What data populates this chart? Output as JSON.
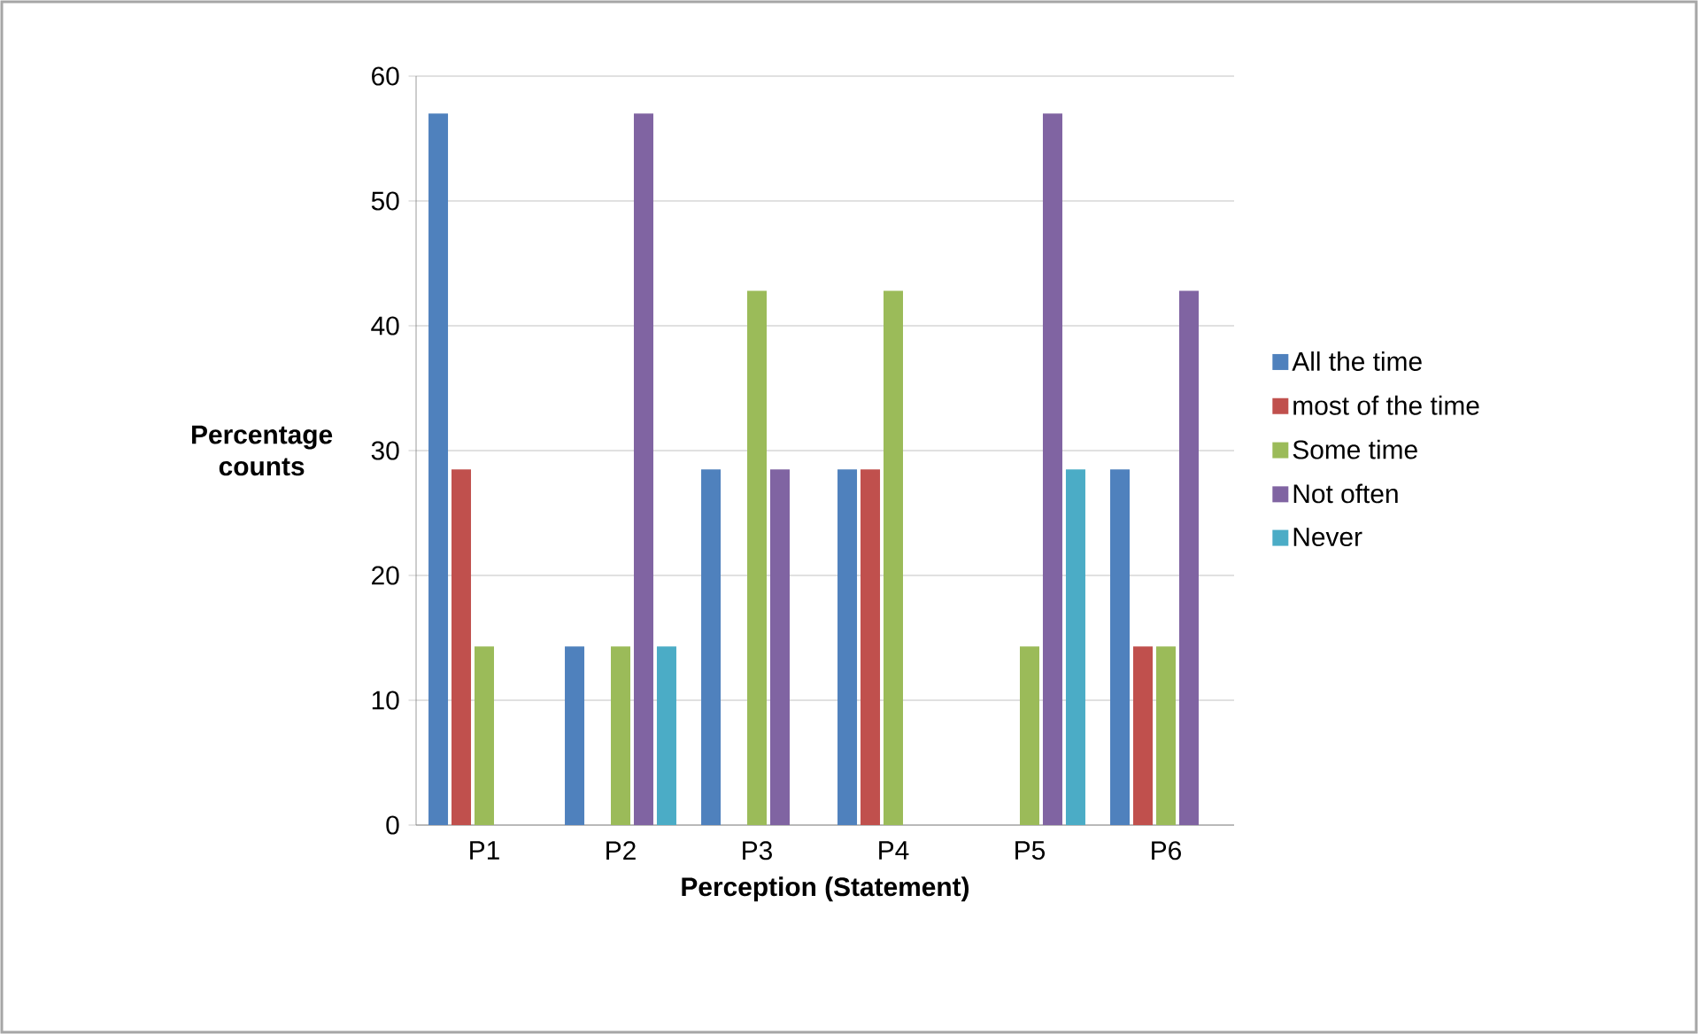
{
  "chart_data": {
    "type": "bar",
    "xlabel": "Perception (Statement)",
    "ylabel": "Percentage counts",
    "categories": [
      "P1",
      "P2",
      "P3",
      "P4",
      "P5",
      "P6"
    ],
    "series": [
      {
        "name": "All the time",
        "color": "#4f81bd",
        "values": [
          57,
          14.3,
          28.5,
          28.5,
          0,
          28.5
        ]
      },
      {
        "name": "most of the time",
        "color": "#c0504d",
        "values": [
          28.5,
          0,
          0,
          28.5,
          0,
          14.3
        ]
      },
      {
        "name": "Some time",
        "color": "#9bbb59",
        "values": [
          14.3,
          14.3,
          42.8,
          42.8,
          14.3,
          14.3
        ]
      },
      {
        "name": "Not often",
        "color": "#8064a2",
        "values": [
          0,
          57,
          28.5,
          0,
          57,
          42.8
        ]
      },
      {
        "name": "Never",
        "color": "#4bacc6",
        "values": [
          0,
          14.3,
          0,
          0,
          28.5,
          0
        ]
      }
    ],
    "ylim": [
      0,
      60
    ],
    "yticks": [
      0,
      10,
      20,
      30,
      40,
      50,
      60
    ],
    "grid": "y",
    "legend": "right"
  }
}
